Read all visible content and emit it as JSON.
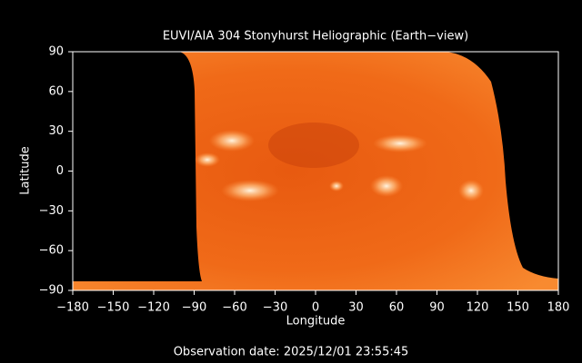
{
  "chart_data": {
    "type": "map",
    "title": "EUVI/AIA 304 Stonyhurst Heliographic (Earth−view)",
    "x_label": "Longitude",
    "y_label": "Latitude",
    "xlim": [
      -180,
      180
    ],
    "ylim": [
      -90,
      90
    ],
    "xticks": [
      {
        "value": -180,
        "label": "−180"
      },
      {
        "value": -150,
        "label": "−150"
      },
      {
        "value": -120,
        "label": "−120"
      },
      {
        "value": -90,
        "label": "−90"
      },
      {
        "value": -60,
        "label": "−60"
      },
      {
        "value": -30,
        "label": "−30"
      },
      0,
      30,
      60,
      90,
      120,
      150,
      180
    ],
    "yticks": [
      {
        "value": -90,
        "label": "−90"
      },
      {
        "value": -60,
        "label": "−60"
      },
      {
        "value": -30,
        "label": "−30"
      },
      0,
      30,
      60,
      90
    ],
    "footer": "Observation date: 2025/12/01 23:55:45"
  }
}
